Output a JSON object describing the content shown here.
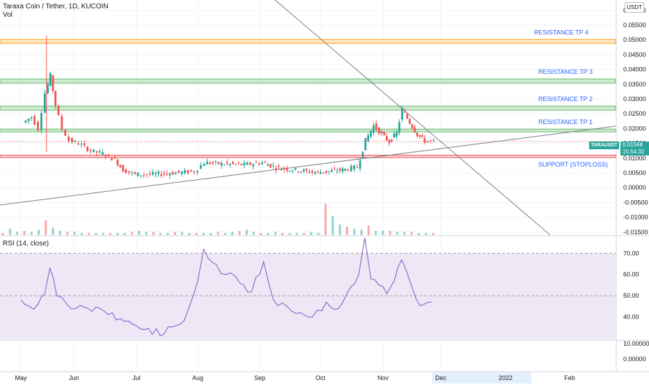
{
  "header": {
    "symbol_line": "Taraxa Coin / Tether, 1D, KUCOIN",
    "volume_label": "Vol",
    "currency_badge": "USDT"
  },
  "price_badge": {
    "ticker": "TARAUSDT",
    "price": "0.01568",
    "countdown": "15:54:32"
  },
  "colors": {
    "up": "#26a69a",
    "down": "#ef5350",
    "resistance_tp4": "#ffe0b2",
    "resistance_green": "#c8e6c9",
    "support": "#ffcdd2",
    "rsi_line": "#7e57c2",
    "rsi_band": "#ede7f6",
    "label_blue": "#2962ff"
  },
  "chart_data": [
    {
      "type": "candlestick",
      "title": "Taraxa Coin / Tether, 1D, KUCOIN",
      "price_axis": {
        "ticks": [
          "0.06000",
          "0.05500",
          "0.05000",
          "0.04500",
          "0.04000",
          "0.03500",
          "0.03000",
          "0.02500",
          "0.02000",
          "0.01500",
          "0.01000",
          "0.00500",
          "0.00000",
          "-0.00500",
          "-0.01000",
          "-0.01500"
        ],
        "range": [
          -0.016,
          0.0635
        ]
      },
      "time_axis": {
        "labels": [
          "May",
          "Jun",
          "Jul",
          "Aug",
          "Sep",
          "Oct",
          "Nov",
          "Dec",
          "2022",
          "Feb"
        ]
      },
      "zones": [
        {
          "name": "RESISTANCE TP 4",
          "low": 0.0488,
          "high": 0.0502
        },
        {
          "name": "RESISTANCE TP 3",
          "low": 0.0354,
          "high": 0.0368
        },
        {
          "name": "RESISTANCE TP 2",
          "low": 0.0262,
          "high": 0.0276
        },
        {
          "name": "RESISTANCE TP 1",
          "low": 0.0189,
          "high": 0.0198
        },
        {
          "name": "SUPPORT (STOPLOSS)",
          "low": 0.0102,
          "high": 0.011
        }
      ],
      "last_price": 0.01568,
      "price_series": [
        [
          "May 3",
          0.022
        ],
        [
          "May 8",
          0.024
        ],
        [
          "May 12",
          0.02
        ],
        [
          "May 16",
          0.032
        ],
        [
          "May 19",
          0.038
        ],
        [
          "May 22",
          0.028
        ],
        [
          "May 26",
          0.02
        ],
        [
          "May 30",
          0.016
        ],
        [
          "Jun 4",
          0.015
        ],
        [
          "Jun 10",
          0.0125
        ],
        [
          "Jun 16",
          0.0115
        ],
        [
          "Jun 22",
          0.0095
        ],
        [
          "Jun 26",
          0.006
        ],
        [
          "Jul 1",
          0.0045
        ],
        [
          "Jul 10",
          0.0045
        ],
        [
          "Jul 20",
          0.005
        ],
        [
          "Jul 31",
          0.0055
        ],
        [
          "Aug 5",
          0.0085
        ],
        [
          "Aug 15",
          0.008
        ],
        [
          "Aug 25",
          0.0078
        ],
        [
          "Sep 3",
          0.0085
        ],
        [
          "Sep 10",
          0.0068
        ],
        [
          "Sep 20",
          0.006
        ],
        [
          "Sep 30",
          0.0052
        ],
        [
          "Oct 6",
          0.0055
        ],
        [
          "Oct 14",
          0.0062
        ],
        [
          "Oct 20",
          0.007
        ],
        [
          "Oct 24",
          0.016
        ],
        [
          "Oct 28",
          0.021
        ],
        [
          "Nov 1",
          0.018
        ],
        [
          "Nov 5",
          0.0155
        ],
        [
          "Nov 9",
          0.0185
        ],
        [
          "Nov 12",
          0.0265
        ],
        [
          "Nov 16",
          0.022
        ],
        [
          "Nov 20",
          0.018
        ],
        [
          "Nov 24",
          0.0158
        ],
        [
          "Nov 29",
          0.01568
        ]
      ],
      "volume": [
        2,
        6,
        3,
        4,
        3,
        5,
        14,
        7,
        4,
        3,
        3,
        2,
        2,
        2,
        2,
        2,
        2,
        2,
        3,
        4,
        3,
        3,
        2,
        2,
        3,
        3,
        2,
        2,
        2,
        2,
        3,
        2,
        3,
        4,
        5,
        3,
        2,
        2,
        3,
        2,
        2,
        2,
        2,
        3,
        2,
        30,
        18,
        10,
        8,
        6,
        5,
        9,
        4,
        4,
        4,
        3,
        3,
        3,
        2,
        2,
        2
      ]
    },
    {
      "type": "line",
      "title": "RSI (14, close)",
      "ylim": [
        30,
        77
      ],
      "y_ticks": [
        "70.00",
        "60.00",
        "50.00",
        "40.00"
      ],
      "bands": [
        30,
        70
      ],
      "midline": 50,
      "x": [
        "May 1",
        "May 6",
        "May 11",
        "May 15",
        "May 18",
        "May 22",
        "May 28",
        "Jun 2",
        "Jun 8",
        "Jun 14",
        "Jun 20",
        "Jun 26",
        "Jul 5",
        "Jul 15",
        "Jul 25",
        "Aug 1",
        "Aug 4",
        "Aug 8",
        "Aug 15",
        "Aug 22",
        "Aug 28",
        "Sep 3",
        "Sep 8",
        "Sep 15",
        "Sep 22",
        "Sep 28",
        "Oct 4",
        "Oct 10",
        "Oct 16",
        "Oct 20",
        "Oct 23",
        "Oct 26",
        "Oct 30",
        "Nov 3",
        "Nov 7",
        "Nov 11",
        "Nov 15",
        "Nov 19",
        "Nov 23",
        "Nov 27"
      ],
      "values": [
        48,
        45,
        46,
        51,
        63,
        50,
        46,
        44,
        44,
        44,
        42,
        38,
        34,
        32,
        38,
        57,
        72,
        66,
        60,
        56,
        52,
        66,
        48,
        45,
        42,
        40,
        47,
        44,
        54,
        60,
        78,
        58,
        55,
        51,
        57,
        67,
        58,
        48,
        46,
        47
      ]
    },
    {
      "type": "line",
      "title": "",
      "y_ticks": [
        "10.00000",
        "0.00000"
      ]
    }
  ]
}
